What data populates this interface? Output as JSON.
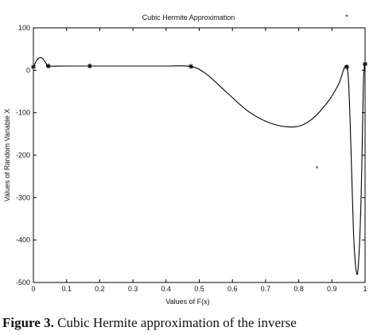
{
  "chart_data": {
    "type": "line",
    "title": "Cubic Hermite Approximation",
    "xlabel": "Values of F(x)",
    "ylabel": "Values of Random Variable X",
    "xlim": [
      0,
      1
    ],
    "ylim": [
      -500,
      100
    ],
    "xticks": [
      0,
      0.1,
      0.2,
      0.3,
      0.4,
      0.5,
      0.6,
      0.7,
      0.8,
      0.9,
      1
    ],
    "xtick_labels": [
      "0",
      "0.1",
      "0.2",
      "0.3",
      "0.4",
      "0.5",
      "0.6",
      "0.7",
      "0.8",
      "0.9",
      "1"
    ],
    "yticks": [
      100,
      0,
      -100,
      -200,
      -300,
      -400,
      -500
    ],
    "ytick_labels": [
      "100",
      "0",
      "-100",
      "-200",
      "-300",
      "-400",
      "-500"
    ],
    "grid": false,
    "legend": false,
    "series": [
      {
        "x": [
          0,
          0.003,
          0.01,
          0.02,
          0.025,
          0.03,
          0.035,
          0.04,
          0.045,
          0.1,
          0.17,
          0.3,
          0.4,
          0.475,
          0.52,
          0.58,
          0.65,
          0.72,
          0.79,
          0.84,
          0.89,
          0.92,
          0.945,
          0.955,
          0.965,
          0.975,
          0.982,
          0.988,
          0.992,
          0.995,
          0.998,
          1.0
        ],
        "y": [
          8,
          12,
          24,
          30,
          29,
          26,
          20,
          14,
          10,
          10,
          10,
          10,
          10,
          9,
          -8,
          -50,
          -98,
          -126,
          -133,
          -115,
          -72,
          -33,
          8,
          -120,
          -380,
          -480,
          -430,
          -300,
          -150,
          -30,
          10,
          15
        ]
      }
    ],
    "markers": {
      "symbol": "*",
      "x": [
        0,
        0.045,
        0.17,
        0.475,
        0.945,
        1.0
      ],
      "y": [
        8,
        10,
        10,
        9,
        8,
        15
      ]
    },
    "annotations": [
      {
        "text": "*",
        "x": 0.945,
        "y": 125
      },
      {
        "text": "*",
        "x": 0.855,
        "y": -232
      }
    ]
  },
  "caption": {
    "label": "Figure 3.",
    "text": " Cubic Hermite approximation of the inverse"
  }
}
